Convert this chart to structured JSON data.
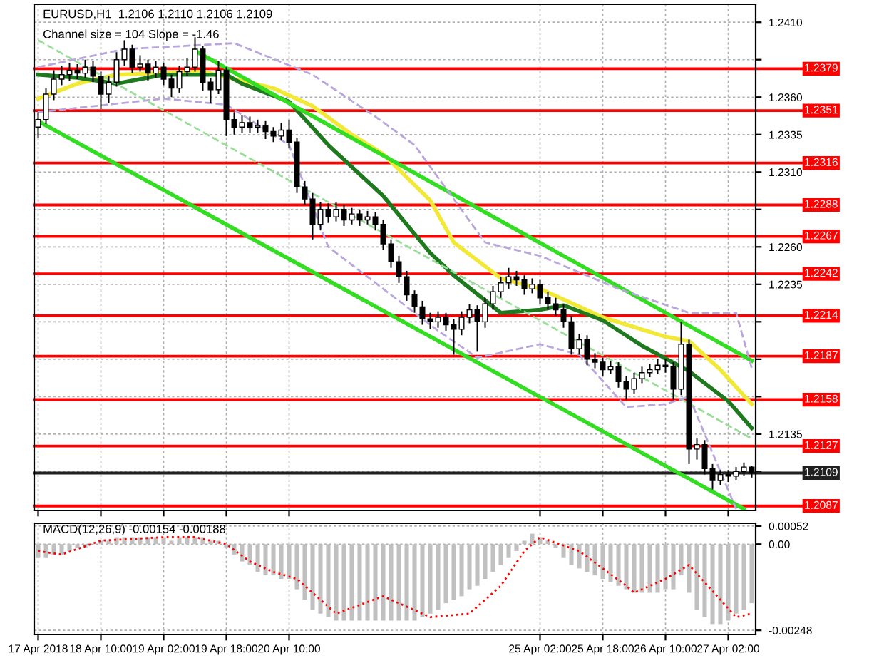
{
  "chart_data": [
    {
      "type": "candlestick",
      "title": "EURUSD,H1  1.2106 1.2110 1.2106 1.2109",
      "subtitle": "Channel size = 104 Slope = -1.46",
      "categories": [
        null,
        null,
        null,
        null,
        null,
        null,
        null,
        null,
        null,
        null,
        null,
        null,
        null,
        null,
        null,
        null,
        null,
        null,
        null,
        null,
        null,
        null,
        null,
        null,
        null,
        null,
        null,
        null,
        null,
        null,
        null,
        null,
        null,
        null,
        null,
        null,
        null,
        null,
        null,
        null,
        null,
        null,
        null,
        null,
        null,
        null,
        null,
        null,
        null,
        null,
        null,
        null,
        null,
        null,
        null,
        null,
        null,
        null,
        null,
        null,
        null,
        null,
        null,
        null,
        null,
        null,
        null,
        null,
        null,
        null,
        null,
        null,
        null,
        null,
        null,
        null,
        null,
        null,
        null,
        null,
        null,
        null,
        null,
        null,
        null,
        null,
        null,
        null,
        null,
        null,
        null,
        null
      ],
      "ohlc": [
        [
          1.234,
          1.235,
          1.2333,
          1.2345
        ],
        [
          1.2345,
          1.2366,
          1.2342,
          1.2362
        ],
        [
          1.2362,
          1.2378,
          1.2358,
          1.2372
        ],
        [
          1.2372,
          1.2381,
          1.2368,
          1.2375
        ],
        [
          1.2375,
          1.2383,
          1.2371,
          1.2378
        ],
        [
          1.2378,
          1.2382,
          1.2372,
          1.2376
        ],
        [
          1.2376,
          1.2385,
          1.2373,
          1.238
        ],
        [
          1.238,
          1.2384,
          1.237,
          1.2374
        ],
        [
          1.2374,
          1.2377,
          1.2352,
          1.2362
        ],
        [
          1.2362,
          1.2374,
          1.2356,
          1.237
        ],
        [
          1.237,
          1.239,
          1.2367,
          1.2385
        ],
        [
          1.2385,
          1.2398,
          1.2381,
          1.2392
        ],
        [
          1.2392,
          1.2395,
          1.2376,
          1.238
        ],
        [
          1.238,
          1.2388,
          1.2377,
          1.2382
        ],
        [
          1.2382,
          1.2385,
          1.2371,
          1.2376
        ],
        [
          1.2376,
          1.2384,
          1.2373,
          1.238
        ],
        [
          1.238,
          1.2383,
          1.2368,
          1.2372
        ],
        [
          1.2372,
          1.2375,
          1.236,
          1.2366
        ],
        [
          1.2366,
          1.2381,
          1.2363,
          1.2377
        ],
        [
          1.2377,
          1.2386,
          1.2374,
          1.238
        ],
        [
          1.238,
          1.24,
          1.2377,
          1.2392
        ],
        [
          1.2392,
          1.2394,
          1.2364,
          1.237
        ],
        [
          1.237,
          1.2373,
          1.2356,
          1.2365
        ],
        [
          1.2365,
          1.2384,
          1.2362,
          1.2378
        ],
        [
          1.2378,
          1.238,
          1.2334,
          1.2345
        ],
        [
          1.2345,
          1.235,
          1.2335,
          1.234
        ],
        [
          1.234,
          1.2348,
          1.2336,
          1.2343
        ],
        [
          1.2343,
          1.2347,
          1.2336,
          1.234
        ],
        [
          1.234,
          1.2345,
          1.2336,
          1.2341
        ],
        [
          1.2341,
          1.2344,
          1.2332,
          1.2337
        ],
        [
          1.2337,
          1.234,
          1.233,
          1.2334
        ],
        [
          1.2334,
          1.2343,
          1.2331,
          1.2338
        ],
        [
          1.2338,
          1.2345,
          1.2326,
          1.233
        ],
        [
          1.233,
          1.2333,
          1.2296,
          1.23
        ],
        [
          1.23,
          1.2304,
          1.2288,
          1.2292
        ],
        [
          1.2292,
          1.2296,
          1.2265,
          1.2275
        ],
        [
          1.2275,
          1.229,
          1.2271,
          1.2285
        ],
        [
          1.2285,
          1.2289,
          1.2276,
          1.228
        ],
        [
          1.228,
          1.229,
          1.2277,
          1.2285
        ],
        [
          1.2285,
          1.2288,
          1.2274,
          1.2278
        ],
        [
          1.2278,
          1.2286,
          1.2275,
          1.2282
        ],
        [
          1.2282,
          1.2285,
          1.2274,
          1.2278
        ],
        [
          1.2278,
          1.2284,
          1.2275,
          1.228
        ],
        [
          1.228,
          1.2283,
          1.2271,
          1.2275
        ],
        [
          1.2275,
          1.2278,
          1.2258,
          1.2262
        ],
        [
          1.2262,
          1.2265,
          1.2246,
          1.225
        ],
        [
          1.225,
          1.2254,
          1.2236,
          1.224
        ],
        [
          1.224,
          1.2244,
          1.2224,
          1.2228
        ],
        [
          1.2228,
          1.2231,
          1.2216,
          1.222
        ],
        [
          1.222,
          1.2224,
          1.2208,
          1.2212
        ],
        [
          1.2212,
          1.2216,
          1.2205,
          1.221
        ],
        [
          1.221,
          1.2217,
          1.2206,
          1.2213
        ],
        [
          1.2213,
          1.2216,
          1.2204,
          1.2208
        ],
        [
          1.2208,
          1.2212,
          1.2188,
          1.2205
        ],
        [
          1.2205,
          1.2217,
          1.2201,
          1.2213
        ],
        [
          1.2213,
          1.2222,
          1.2209,
          1.2218
        ],
        [
          1.2218,
          1.2221,
          1.219,
          1.221
        ],
        [
          1.221,
          1.2226,
          1.2206,
          1.2222
        ],
        [
          1.2222,
          1.2234,
          1.2218,
          1.223
        ],
        [
          1.223,
          1.224,
          1.2226,
          1.2236
        ],
        [
          1.2236,
          1.2246,
          1.2232,
          1.224
        ],
        [
          1.224,
          1.2244,
          1.2234,
          1.2238
        ],
        [
          1.2238,
          1.2241,
          1.2228,
          1.2232
        ],
        [
          1.2232,
          1.2239,
          1.2229,
          1.2235
        ],
        [
          1.2235,
          1.2238,
          1.2222,
          1.2226
        ],
        [
          1.2226,
          1.223,
          1.2218,
          1.2222
        ],
        [
          1.2222,
          1.2226,
          1.2214,
          1.2218
        ],
        [
          1.2218,
          1.2222,
          1.2206,
          1.221
        ],
        [
          1.221,
          1.2214,
          1.2188,
          1.2192
        ],
        [
          1.2192,
          1.2202,
          1.2188,
          1.2198
        ],
        [
          1.2198,
          1.2201,
          1.2181,
          1.2185
        ],
        [
          1.2185,
          1.2189,
          1.2179,
          1.2183
        ],
        [
          1.2183,
          1.2186,
          1.2174,
          1.2178
        ],
        [
          1.2178,
          1.2184,
          1.2175,
          1.218
        ],
        [
          1.218,
          1.2183,
          1.2166,
          1.217
        ],
        [
          1.217,
          1.2174,
          1.2158,
          1.2165
        ],
        [
          1.2165,
          1.2176,
          1.2162,
          1.2172
        ],
        [
          1.2172,
          1.218,
          1.2169,
          1.2176
        ],
        [
          1.2176,
          1.2182,
          1.2173,
          1.2178
        ],
        [
          1.2178,
          1.2185,
          1.2175,
          1.2181
        ],
        [
          1.2181,
          1.2185,
          1.2176,
          1.218
        ],
        [
          1.218,
          1.2183,
          1.2158,
          1.2165
        ],
        [
          1.2165,
          1.221,
          1.2161,
          1.2195
        ],
        [
          1.2195,
          1.2198,
          1.2115,
          1.2125
        ],
        [
          1.2125,
          1.2132,
          1.2118,
          1.2128
        ],
        [
          1.2128,
          1.2131,
          1.2108,
          1.2112
        ],
        [
          1.2112,
          1.2115,
          1.2098,
          1.2104
        ],
        [
          1.2104,
          1.2111,
          1.2101,
          1.2108
        ],
        [
          1.2108,
          1.2111,
          1.2103,
          1.2107
        ],
        [
          1.2107,
          1.2113,
          1.2104,
          1.211
        ],
        [
          1.211,
          1.2116,
          1.2107,
          1.2113
        ],
        [
          1.2113,
          1.2114,
          1.2106,
          1.2109
        ]
      ],
      "series": [
        {
          "type": "line",
          "color": "#f2e836",
          "line_style": "solid",
          "values": [
            1.2359,
            null,
            null,
            null,
            null,
            1.2369,
            null,
            null,
            null,
            null,
            1.2375,
            null,
            null,
            null,
            null,
            null,
            null,
            null,
            null,
            null,
            null,
            1.2377,
            null,
            null,
            null,
            null,
            null,
            null,
            null,
            null,
            1.2366,
            null,
            null,
            null,
            null,
            1.2354,
            null,
            null,
            null,
            null,
            1.2335,
            null,
            null,
            null,
            1.2322,
            null,
            null,
            null,
            null,
            null,
            1.2291,
            null,
            null,
            1.2263,
            null,
            null,
            null,
            null,
            null,
            1.2239,
            null,
            null,
            null,
            null,
            1.2232,
            null,
            null,
            null,
            null,
            null,
            null,
            null,
            1.2213,
            null,
            null,
            null,
            null,
            null,
            null,
            null,
            1.22,
            null,
            null,
            1.2197,
            null,
            null,
            null,
            1.2178,
            null,
            null,
            null,
            1.2155
          ]
        },
        {
          "type": "line",
          "color": "#1f7a1f",
          "line_style": "solid",
          "values": [
            1.2375,
            null,
            null,
            null,
            null,
            1.2373,
            null,
            null,
            null,
            null,
            1.2369,
            null,
            null,
            null,
            null,
            null,
            1.2375,
            null,
            null,
            null,
            null,
            null,
            null,
            null,
            1.2375,
            null,
            1.2369,
            null,
            null,
            null,
            null,
            null,
            1.2357,
            null,
            null,
            null,
            null,
            1.2328,
            null,
            null,
            null,
            null,
            null,
            null,
            1.2294,
            null,
            null,
            null,
            null,
            null,
            1.2256,
            null,
            null,
            1.2241,
            null,
            null,
            null,
            null,
            null,
            1.2216,
            null,
            null,
            null,
            null,
            1.2218,
            null,
            null,
            1.2221,
            null,
            null,
            null,
            null,
            1.2211,
            null,
            null,
            null,
            null,
            1.2194,
            null,
            null,
            null,
            null,
            null,
            1.2177,
            null,
            null,
            null,
            null,
            1.2157,
            null,
            null,
            1.2139
          ]
        },
        {
          "type": "line",
          "color": "#33dd22",
          "line_style": "solid",
          "values": [
            null,
            null,
            null,
            null,
            null,
            null,
            null,
            null,
            null,
            null,
            null,
            null,
            null,
            null,
            null,
            null,
            null,
            null,
            null,
            null,
            1.2391,
            null,
            null,
            null,
            null,
            null,
            null,
            null,
            null,
            null,
            null,
            null,
            null,
            null,
            null,
            null,
            null,
            null,
            null,
            null,
            null,
            null,
            null,
            null,
            null,
            null,
            null,
            null,
            null,
            null,
            null,
            null,
            null,
            null,
            null,
            null,
            null,
            null,
            null,
            null,
            null,
            null,
            null,
            null,
            null,
            null,
            null,
            null,
            null,
            null,
            null,
            null,
            null,
            null,
            null,
            null,
            null,
            null,
            null,
            null,
            null,
            null,
            null,
            null,
            null,
            null,
            null,
            null,
            null,
            null,
            null,
            1.2184
          ]
        },
        {
          "type": "line",
          "color": "#33dd22",
          "line_style": "solid",
          "values": [
            1.2344,
            null,
            null,
            null,
            null,
            null,
            null,
            null,
            null,
            null,
            null,
            null,
            null,
            null,
            null,
            null,
            null,
            null,
            null,
            null,
            null,
            null,
            null,
            null,
            null,
            null,
            null,
            null,
            null,
            null,
            null,
            null,
            null,
            null,
            null,
            null,
            null,
            null,
            null,
            null,
            null,
            null,
            null,
            null,
            null,
            null,
            null,
            null,
            null,
            null,
            null,
            null,
            null,
            null,
            null,
            null,
            null,
            null,
            null,
            null,
            null,
            null,
            null,
            null,
            null,
            null,
            null,
            null,
            null,
            null,
            null,
            null,
            null,
            null,
            null,
            null,
            null,
            null,
            null,
            null,
            null,
            null,
            null,
            null,
            null,
            null,
            null,
            null,
            null,
            null,
            1.2085,
            null
          ]
        },
        {
          "type": "line",
          "color": "#99dd99",
          "line_style": "dashed",
          "values": [
            1.2398,
            null,
            null,
            null,
            null,
            null,
            null,
            null,
            null,
            null,
            null,
            null,
            null,
            null,
            null,
            null,
            null,
            null,
            null,
            null,
            null,
            null,
            null,
            null,
            null,
            null,
            null,
            null,
            null,
            null,
            null,
            null,
            null,
            null,
            null,
            null,
            null,
            null,
            null,
            null,
            null,
            null,
            null,
            null,
            null,
            null,
            null,
            null,
            null,
            null,
            null,
            null,
            null,
            null,
            null,
            null,
            null,
            null,
            null,
            null,
            null,
            null,
            null,
            null,
            null,
            null,
            null,
            null,
            null,
            null,
            null,
            null,
            null,
            null,
            null,
            null,
            null,
            null,
            null,
            null,
            null,
            null,
            null,
            null,
            null,
            null,
            null,
            null,
            null,
            null,
            null,
            1.2132
          ]
        },
        {
          "type": "line",
          "color": "#b9a6dc",
          "line_style": "dashed",
          "values": [
            1.238,
            null,
            null,
            null,
            null,
            null,
            null,
            null,
            null,
            null,
            null,
            1.2392,
            null,
            null,
            null,
            null,
            null,
            null,
            null,
            null,
            null,
            null,
            null,
            null,
            null,
            1.2396,
            null,
            null,
            null,
            null,
            null,
            null,
            null,
            null,
            null,
            1.2375,
            null,
            null,
            null,
            null,
            null,
            null,
            null,
            1.2347,
            null,
            null,
            null,
            null,
            1.2328,
            null,
            null,
            null,
            null,
            null,
            null,
            null,
            null,
            1.2263,
            null,
            null,
            null,
            null,
            null,
            null,
            1.2254,
            null,
            null,
            null,
            null,
            null,
            null,
            null,
            null,
            null,
            1.2232,
            null,
            null,
            null,
            null,
            null,
            null,
            null,
            null,
            1.2216,
            null,
            null,
            null,
            null,
            null,
            1.2216,
            null,
            1.2179
          ]
        },
        {
          "type": "line",
          "color": "#b9a6dc",
          "line_style": "dashed",
          "values": [
            1.235,
            null,
            null,
            null,
            null,
            null,
            null,
            null,
            null,
            null,
            null,
            null,
            null,
            null,
            null,
            null,
            1.2359,
            null,
            null,
            null,
            null,
            null,
            null,
            null,
            1.2355,
            null,
            null,
            null,
            null,
            null,
            null,
            null,
            1.2328,
            null,
            null,
            null,
            null,
            1.226,
            null,
            null,
            null,
            null,
            null,
            null,
            null,
            null,
            null,
            null,
            null,
            null,
            null,
            1.2204,
            null,
            null,
            null,
            null,
            1.2186,
            null,
            null,
            null,
            null,
            null,
            null,
            null,
            1.2195,
            null,
            null,
            null,
            null,
            1.2188,
            null,
            null,
            null,
            null,
            null,
            1.2153,
            null,
            null,
            null,
            null,
            1.2155,
            null,
            null,
            1.216,
            null,
            null,
            null,
            null,
            null,
            1.2085,
            null,
            null
          ]
        }
      ],
      "ylim": [
        1.2084,
        1.2422
      ],
      "yticks": [
        {
          "value": 1.241,
          "label": "1.2410"
        },
        {
          "value": 1.2385,
          "label": null
        },
        {
          "value": 1.236,
          "label": "1.2360"
        },
        {
          "value": 1.2335,
          "label": "1.2335"
        },
        {
          "value": 1.231,
          "label": "1.2310"
        },
        {
          "value": 1.2285,
          "label": null
        },
        {
          "value": 1.226,
          "label": "1.2260"
        },
        {
          "value": 1.2235,
          "label": "1.2235"
        },
        {
          "value": 1.221,
          "label": null
        },
        {
          "value": 1.2185,
          "label": null
        },
        {
          "value": 1.216,
          "label": null
        },
        {
          "value": 1.2135,
          "label": "1.2135"
        },
        {
          "value": 1.211,
          "label": null
        }
      ],
      "ref_lines": [
        {
          "axis": "y",
          "value": 1.2379,
          "label": "1.2379",
          "color": "#ff0000"
        },
        {
          "axis": "y",
          "value": 1.2351,
          "label": "1.2351",
          "color": "#ff0000"
        },
        {
          "axis": "y",
          "value": 1.2316,
          "label": "1.2316",
          "color": "#ff0000"
        },
        {
          "axis": "y",
          "value": 1.2288,
          "label": "1.2288",
          "color": "#ff0000"
        },
        {
          "axis": "y",
          "value": 1.2267,
          "label": "1.2267",
          "color": "#ff0000"
        },
        {
          "axis": "y",
          "value": 1.2242,
          "label": "1.2242",
          "color": "#ff0000"
        },
        {
          "axis": "y",
          "value": 1.2214,
          "label": "1.2214",
          "color": "#ff0000"
        },
        {
          "axis": "y",
          "value": 1.2187,
          "label": "1.2187",
          "color": "#ff0000"
        },
        {
          "axis": "y",
          "value": 1.2158,
          "label": "1.2158",
          "color": "#ff0000"
        },
        {
          "axis": "y",
          "value": 1.2127,
          "label": "1.2127",
          "color": "#ff0000"
        },
        {
          "axis": "y",
          "value": 1.2109,
          "label": "1.2109",
          "color": "#202020"
        },
        {
          "axis": "y",
          "value": 1.2087,
          "label": "1.2087",
          "color": "#ff0000"
        }
      ],
      "grid": true,
      "legend": false,
      "tick_labels": "y"
    },
    {
      "type": "bar",
      "title": "MACD(12,26,9) -0.00154 -0.00188",
      "categories": [
        "17 Apr 2018",
        null,
        null,
        null,
        null,
        null,
        null,
        null,
        "18 Apr 10:00",
        null,
        null,
        null,
        null,
        null,
        null,
        null,
        "19 Apr 02:00",
        null,
        null,
        null,
        null,
        null,
        null,
        null,
        "19 Apr 18:00",
        null,
        null,
        null,
        null,
        null,
        null,
        null,
        "20 Apr 10:00",
        null,
        null,
        null,
        null,
        null,
        null,
        null,
        null,
        null,
        null,
        null,
        null,
        null,
        null,
        null,
        null,
        null,
        null,
        null,
        null,
        null,
        null,
        null,
        null,
        null,
        null,
        null,
        null,
        null,
        null,
        null,
        "25 Apr 02:00",
        null,
        null,
        null,
        null,
        null,
        null,
        null,
        "25 Apr 18:00",
        null,
        null,
        null,
        null,
        null,
        null,
        null,
        "26 Apr 10:00",
        null,
        null,
        null,
        null,
        null,
        null,
        null,
        "27 Apr 02:00",
        null,
        null,
        null
      ],
      "series": [
        {
          "type": "bar",
          "color": "#c0c0c0",
          "values": [
            -0.0004,
            -0.0004,
            -0.0003,
            -0.0003,
            -0.0002,
            -0.0001,
            -0.0001,
            0.0,
            0.0001,
            0.0001,
            0.0002,
            0.0002,
            0.0002,
            0.0002,
            0.0002,
            0.0002,
            0.0002,
            0.0001,
            0.0002,
            0.0002,
            0.0002,
            0.0002,
            0.0001,
            0.0001,
            -0.0001,
            -0.0003,
            -0.0005,
            -0.0006,
            -0.0008,
            -0.0009,
            -0.0009,
            -0.001,
            -0.001,
            -0.0013,
            -0.0016,
            -0.0019,
            -0.002,
            -0.0021,
            -0.0022,
            -0.0022,
            -0.0022,
            -0.0022,
            -0.0022,
            -0.0022,
            -0.0022,
            -0.0022,
            -0.0022,
            -0.0022,
            -0.0022,
            -0.0021,
            -0.002,
            -0.0019,
            -0.0017,
            -0.0016,
            -0.0015,
            -0.0013,
            -0.0012,
            -0.001,
            -0.0008,
            -0.0006,
            -0.0004,
            -0.0002,
            0.0001,
            0.0003,
            0.0002,
            0.0001,
            -0.0001,
            -0.0004,
            -0.0006,
            -0.0007,
            -0.0008,
            -0.0009,
            -0.001,
            -0.0011,
            -0.0012,
            -0.0013,
            -0.0014,
            -0.0014,
            -0.0014,
            -0.0014,
            -0.0013,
            -0.0013,
            -0.0009,
            -0.0014,
            -0.0019,
            -0.0021,
            -0.0023,
            -0.0023,
            -0.0022,
            -0.002,
            -0.0019,
            -0.0017
          ]
        },
        {
          "type": "line",
          "color": "#ff0000",
          "line_style": "dotted",
          "values": [
            -0.0002,
            null,
            null,
            -0.0003,
            null,
            null,
            null,
            null,
            0.0001,
            null,
            null,
            null,
            null,
            null,
            null,
            null,
            0.0002,
            null,
            null,
            null,
            0.0002,
            null,
            null,
            null,
            0.0,
            null,
            null,
            -0.0005,
            null,
            null,
            -0.0008,
            null,
            null,
            -0.001,
            null,
            null,
            null,
            null,
            -0.002,
            null,
            null,
            null,
            null,
            null,
            -0.0015,
            null,
            null,
            null,
            null,
            null,
            -0.0021,
            null,
            null,
            null,
            null,
            -0.002,
            null,
            null,
            null,
            -0.0012,
            null,
            null,
            -0.0002,
            null,
            0.0002,
            null,
            null,
            null,
            null,
            -0.0002,
            null,
            null,
            null,
            null,
            null,
            -0.0012,
            -0.0014,
            null,
            null,
            null,
            -0.001,
            null,
            null,
            -0.0006,
            null,
            null,
            null,
            null,
            null,
            -0.0021,
            null,
            -0.002
          ]
        }
      ],
      "ylim": [
        -0.0026,
        0.0006
      ],
      "yticks": [
        0.00052,
        {
          "value": 0,
          "label": "0.00"
        },
        -0.00248
      ],
      "grid": true,
      "legend": false
    }
  ]
}
